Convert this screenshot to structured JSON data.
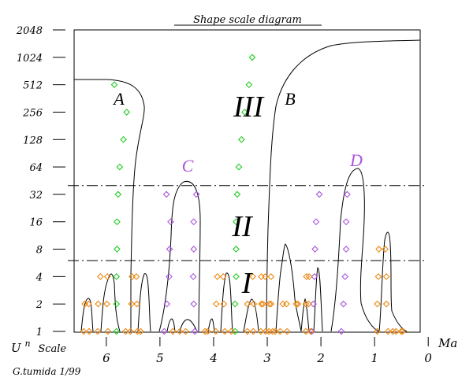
{
  "chart_data": {
    "type": "scatter",
    "title": "Shape scale diagram",
    "y_scale": "log2",
    "yticks": [
      "2048",
      "1024",
      "512",
      "256",
      "128",
      "64",
      "32",
      "16",
      "8",
      "4",
      "2",
      "1"
    ],
    "xticks": [
      "6",
      "5",
      "4",
      "3",
      "2",
      "1",
      "0"
    ],
    "xlabel": "Ma",
    "ylabel_base": "U",
    "ylabel_sup": "n",
    "ylabel_rest": "Scale",
    "footer": "G.tumida 1/99",
    "xlim": [
      6.6,
      0.15
    ],
    "ylim": [
      1,
      2048
    ],
    "thresholds": [
      40,
      6
    ],
    "regions": [
      "I",
      "II",
      "III"
    ],
    "letters": [
      "A",
      "B",
      "C",
      "D"
    ],
    "series": [
      {
        "name": "green",
        "color": "#22cc22",
        "points": [
          [
            5.85,
            512
          ],
          [
            5.62,
            256
          ],
          [
            5.68,
            128
          ],
          [
            5.75,
            64
          ],
          [
            5.78,
            32
          ],
          [
            5.8,
            16
          ],
          [
            5.8,
            8
          ],
          [
            5.81,
            4
          ],
          [
            5.81,
            2
          ],
          [
            5.81,
            1
          ],
          [
            3.28,
            1024
          ],
          [
            3.34,
            512
          ],
          [
            3.42,
            256
          ],
          [
            3.48,
            128
          ],
          [
            3.53,
            64
          ],
          [
            3.56,
            32
          ],
          [
            3.58,
            16
          ],
          [
            3.58,
            8
          ],
          [
            3.58,
            4
          ],
          [
            3.6,
            2
          ],
          [
            3.6,
            1
          ]
        ]
      },
      {
        "name": "purple",
        "color": "#aa55dd",
        "points": [
          [
            4.88,
            32
          ],
          [
            4.32,
            32
          ],
          [
            4.8,
            16
          ],
          [
            4.37,
            16
          ],
          [
            4.82,
            8
          ],
          [
            4.37,
            8
          ],
          [
            4.83,
            4
          ],
          [
            4.38,
            4
          ],
          [
            4.87,
            2
          ],
          [
            4.37,
            2
          ],
          [
            4.92,
            1
          ],
          [
            4.35,
            1
          ],
          [
            2.03,
            32
          ],
          [
            1.51,
            32
          ],
          [
            2.09,
            16
          ],
          [
            1.53,
            16
          ],
          [
            2.11,
            8
          ],
          [
            1.53,
            8
          ],
          [
            2.12,
            4
          ],
          [
            1.55,
            4
          ],
          [
            2.14,
            2
          ],
          [
            1.58,
            2
          ],
          [
            2.17,
            1
          ],
          [
            1.62,
            1
          ]
        ]
      },
      {
        "name": "orange",
        "color": "#ee8811",
        "points": [
          [
            6.4,
            2
          ],
          [
            6.33,
            2
          ],
          [
            6.42,
            1
          ],
          [
            6.32,
            1
          ],
          [
            6.11,
            4
          ],
          [
            5.98,
            4
          ],
          [
            6.15,
            2
          ],
          [
            5.99,
            2
          ],
          [
            6.16,
            1
          ],
          [
            5.97,
            1
          ],
          [
            5.52,
            4
          ],
          [
            5.44,
            4
          ],
          [
            5.53,
            2
          ],
          [
            5.43,
            2
          ],
          [
            5.55,
            1
          ],
          [
            5.42,
            1
          ],
          [
            5.64,
            1
          ],
          [
            5.36,
            1
          ],
          [
            4.76,
            1
          ],
          [
            4.63,
            1
          ],
          [
            4.52,
            1
          ],
          [
            4.11,
            1
          ],
          [
            4.16,
            1
          ],
          [
            3.93,
            4
          ],
          [
            3.82,
            4
          ],
          [
            3.95,
            2
          ],
          [
            3.81,
            2
          ],
          [
            3.96,
            1
          ],
          [
            3.79,
            1
          ],
          [
            3.67,
            1
          ],
          [
            3.27,
            4
          ],
          [
            3.11,
            4
          ],
          [
            3.04,
            4
          ],
          [
            2.93,
            4
          ],
          [
            3.37,
            2
          ],
          [
            3.25,
            2
          ],
          [
            3.11,
            2
          ],
          [
            3.08,
            2
          ],
          [
            2.96,
            2
          ],
          [
            2.93,
            2
          ],
          [
            3.37,
            1
          ],
          [
            3.26,
            1
          ],
          [
            3.12,
            1
          ],
          [
            3.03,
            1
          ],
          [
            2.97,
            1
          ],
          [
            2.9,
            1
          ],
          [
            2.85,
            1
          ],
          [
            2.76,
            1
          ],
          [
            2.63,
            1
          ],
          [
            2.71,
            2
          ],
          [
            2.64,
            2
          ],
          [
            2.46,
            2
          ],
          [
            2.43,
            2
          ],
          [
            2.28,
            2
          ],
          [
            2.23,
            2
          ],
          [
            2.27,
            4
          ],
          [
            2.22,
            4
          ],
          [
            2.28,
            1
          ],
          [
            2.19,
            1
          ],
          [
            0.92,
            8
          ],
          [
            0.8,
            8
          ],
          [
            0.93,
            4
          ],
          [
            0.78,
            4
          ],
          [
            0.95,
            2
          ],
          [
            0.78,
            2
          ],
          [
            0.95,
            1
          ],
          [
            0.75,
            1
          ],
          [
            0.66,
            1
          ],
          [
            0.6,
            1
          ],
          [
            0.5,
            1
          ],
          [
            0.48,
            1
          ]
        ]
      }
    ]
  }
}
